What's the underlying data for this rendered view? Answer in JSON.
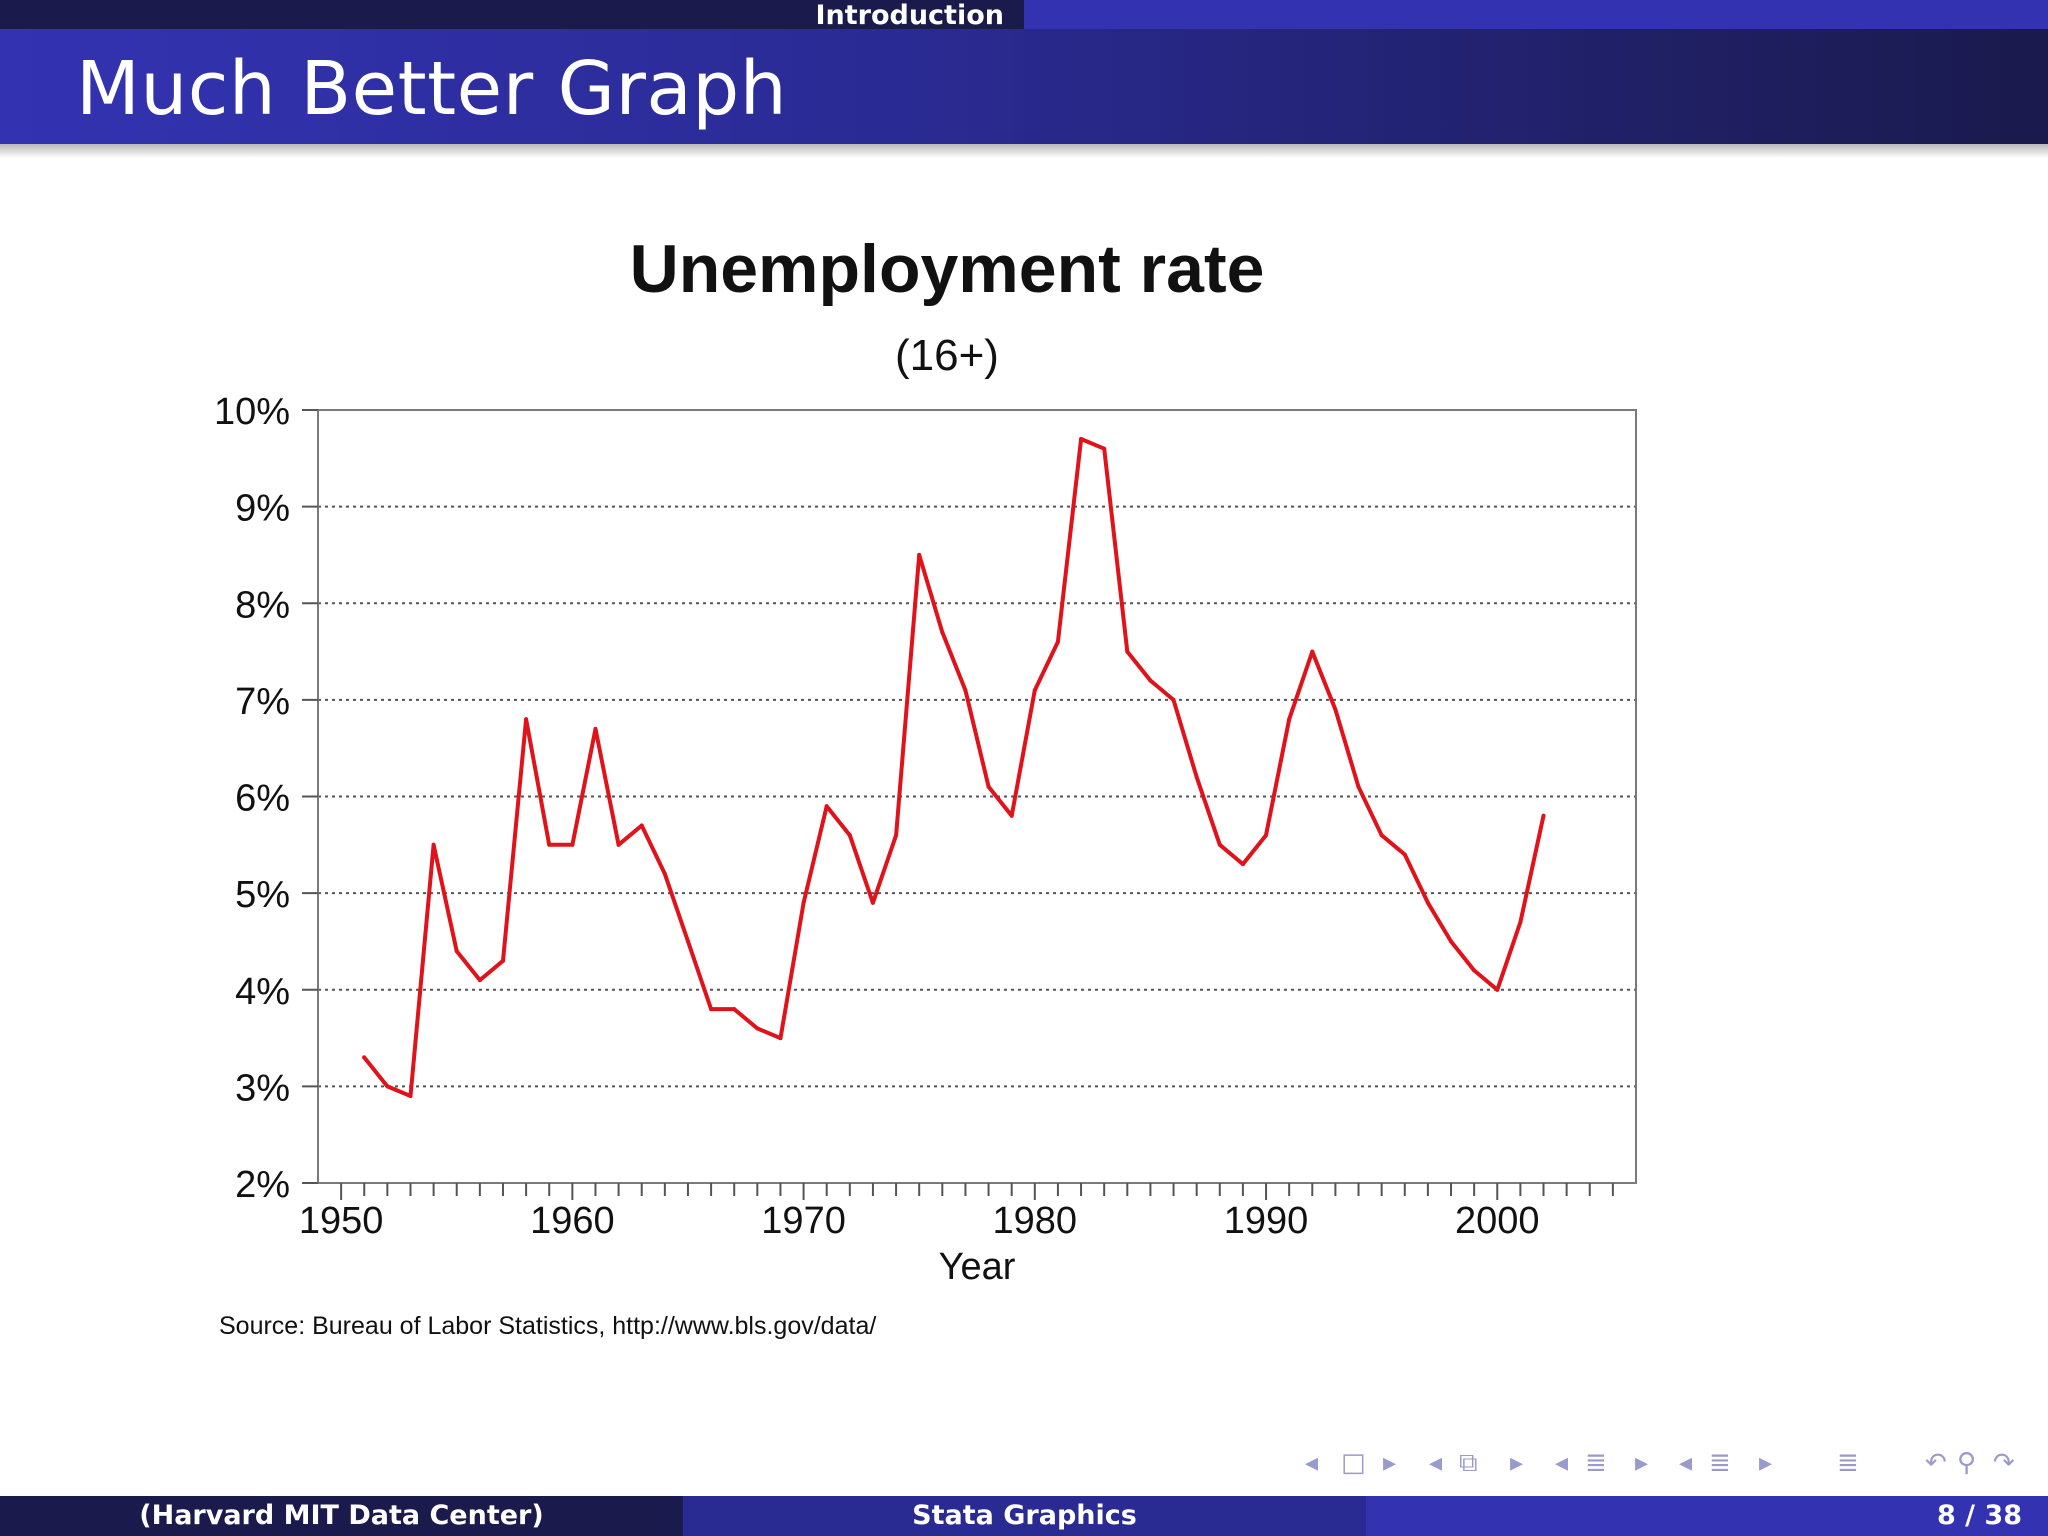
{
  "header": {
    "section": "Introduction",
    "title": "Much Better Graph"
  },
  "footer": {
    "left": "(Harvard MIT Data Center)",
    "center": "Stata Graphics",
    "page": "8 / 38"
  },
  "colors": {
    "line": "#e0121a",
    "nav_dark": "#1a1a4d",
    "nav_mid": "#2a2a93",
    "nav_light": "#3333b2"
  },
  "nav_icons": [
    "prev-frame-icon",
    "frame-icon",
    "next-frame-icon",
    "prev-subsection-icon",
    "subsection-icon",
    "next-subsection-icon",
    "prev-section-icon",
    "section-icon",
    "next-section-icon",
    "prev-doc-icon",
    "doc-icon",
    "next-doc-icon",
    "outline-icon",
    "undo-icon",
    "search-icon",
    "redo-icon"
  ],
  "chart_data": {
    "type": "line",
    "title": "Unemployment rate",
    "subtitle": "(16+)",
    "xlabel": "Year",
    "ylabel": "",
    "source": "Source: Bureau of Labor Statistics,  http://www.bls.gov/data/",
    "xlim": [
      1949,
      2006
    ],
    "ylim": [
      2,
      10
    ],
    "x_ticks": [
      1950,
      1960,
      1970,
      1980,
      1990,
      2000
    ],
    "x_tick_labels": [
      "1950",
      "1960",
      "1970",
      "1980",
      "1990",
      "2000"
    ],
    "y_ticks": [
      2,
      3,
      4,
      5,
      6,
      7,
      8,
      9,
      10
    ],
    "y_tick_labels": [
      "2%",
      "3%",
      "4%",
      "5%",
      "6%",
      "7%",
      "8%",
      "9%",
      "10%"
    ],
    "grid": "horizontal dotted",
    "series": [
      {
        "x": [
          1951,
          1952,
          1953,
          1954,
          1955,
          1956,
          1957,
          1958,
          1959,
          1960,
          1961,
          1962,
          1963,
          1964,
          1965,
          1966,
          1967,
          1968,
          1969,
          1970,
          1971,
          1972,
          1973,
          1974,
          1975,
          1976,
          1977,
          1978,
          1979,
          1980,
          1981,
          1982,
          1983,
          1984,
          1985,
          1986,
          1987,
          1988,
          1989,
          1990,
          1991,
          1992,
          1993,
          1994,
          1995,
          1996,
          1997,
          1998,
          1999,
          2000,
          2001,
          2002
        ],
        "values": [
          3.3,
          3.0,
          2.9,
          5.5,
          4.4,
          4.1,
          4.3,
          6.8,
          5.5,
          5.5,
          6.7,
          5.5,
          5.7,
          5.2,
          4.5,
          3.8,
          3.8,
          3.6,
          3.5,
          4.9,
          5.9,
          5.6,
          4.9,
          5.6,
          8.5,
          7.7,
          7.1,
          6.1,
          5.8,
          7.1,
          7.6,
          9.7,
          9.6,
          7.5,
          7.2,
          7.0,
          6.2,
          5.5,
          5.3,
          5.6,
          6.8,
          7.5,
          6.9,
          6.1,
          5.6,
          5.4,
          4.9,
          4.5,
          4.2,
          4.0,
          4.7,
          5.8
        ]
      }
    ]
  }
}
